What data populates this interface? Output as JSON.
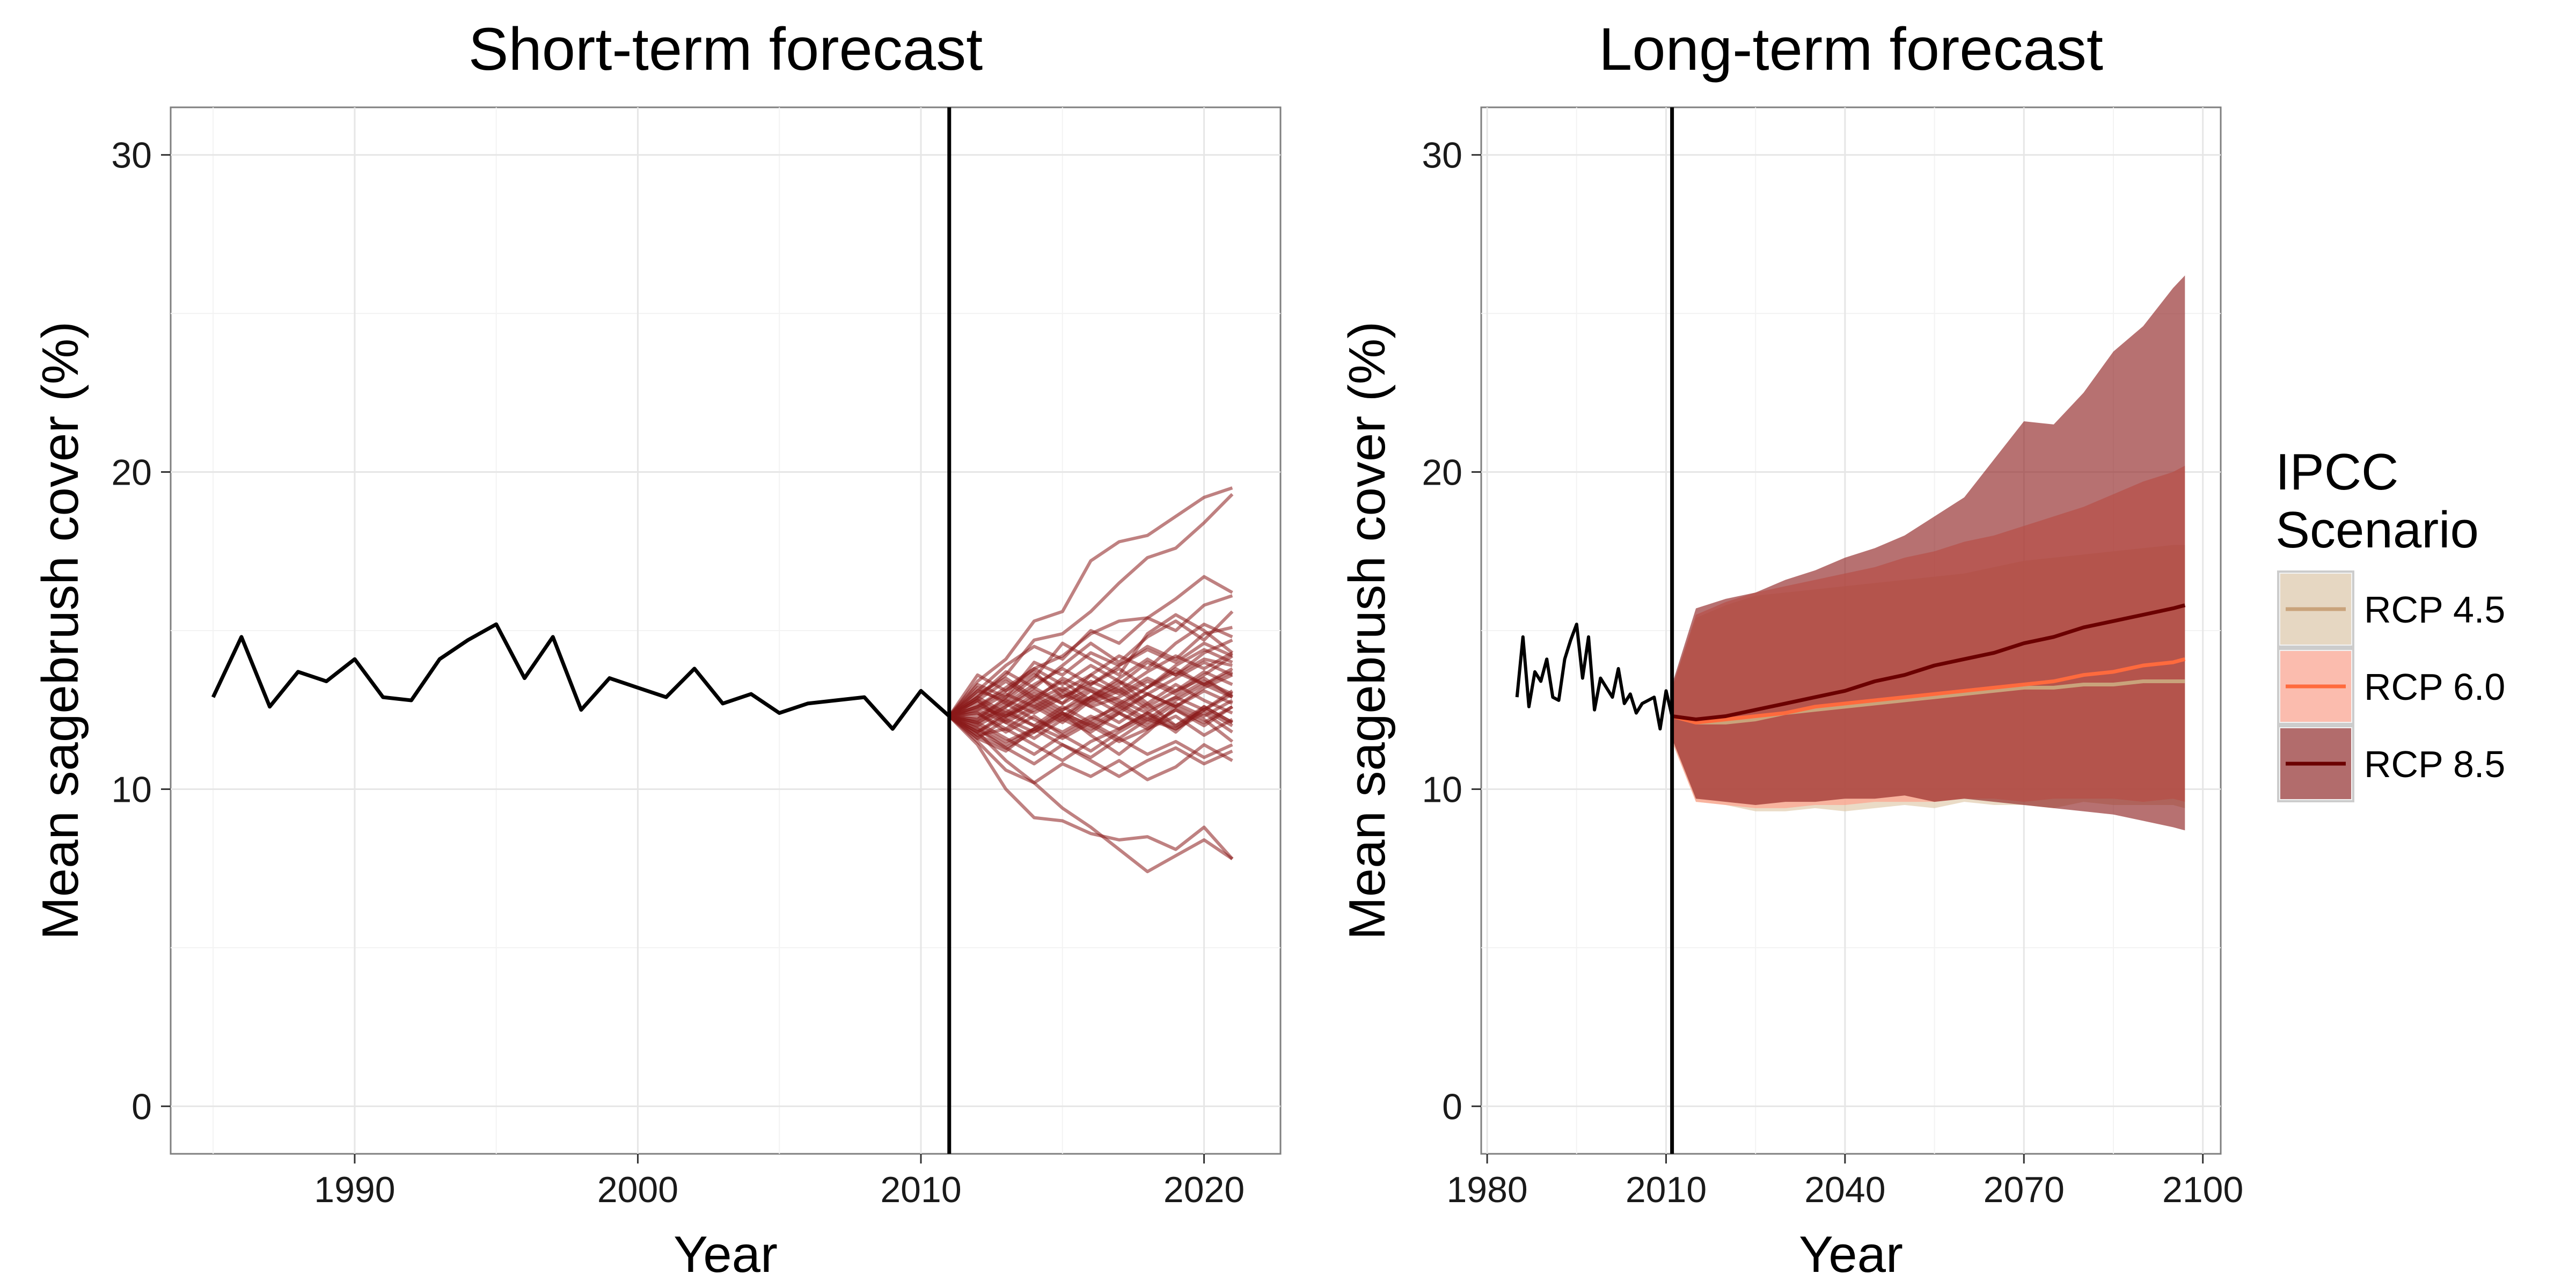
{
  "chart_data": [
    {
      "type": "line",
      "title": "Short-term forecast",
      "xlabel": "Year",
      "ylabel": "Mean sagebrush cover (%)",
      "xlim": [
        1983.5,
        2022.7
      ],
      "ylim": [
        -1.5,
        31.5
      ],
      "xticks": [
        1990,
        2000,
        2010,
        2020
      ],
      "yticks": [
        0,
        10,
        20,
        30
      ],
      "forecast_start": 2011,
      "grid": true,
      "observed": {
        "x": [
          1985,
          1986,
          1987,
          1988,
          1989,
          1990,
          1991,
          1992,
          1993,
          1994,
          1995,
          1996,
          1997,
          1998,
          1999,
          2000,
          2001,
          2002,
          2003,
          2004,
          2005,
          2006,
          2007,
          2008,
          2009,
          2010,
          2011
        ],
        "y": [
          12.9,
          14.8,
          12.6,
          13.7,
          13.4,
          14.1,
          12.9,
          12.8,
          14.1,
          14.7,
          15.2,
          13.5,
          14.8,
          12.5,
          13.5,
          13.2,
          12.9,
          13.8,
          12.7,
          13.0,
          12.4,
          12.7,
          12.8,
          12.9,
          11.9,
          13.1,
          12.3
        ]
      },
      "forecast_years": [
        2011,
        2012,
        2013,
        2014,
        2015,
        2016,
        2017,
        2018,
        2019,
        2020,
        2021
      ],
      "forecast_color": "#8b1a1a",
      "forecast_runs": [
        [
          12.3,
          13.4,
          14.1,
          15.3,
          15.6,
          17.2,
          17.8,
          18.0,
          18.6,
          19.2,
          19.5
        ],
        [
          12.3,
          12.9,
          13.6,
          14.7,
          14.9,
          15.6,
          16.5,
          17.3,
          17.6,
          18.4,
          19.3
        ],
        [
          12.3,
          11.4,
          10.0,
          9.1,
          9.0,
          8.6,
          8.4,
          8.5,
          8.1,
          8.8,
          7.8
        ],
        [
          12.3,
          11.8,
          10.9,
          10.2,
          9.4,
          8.8,
          8.1,
          7.4,
          7.9,
          8.4,
          7.8
        ],
        [
          12.3,
          12.6,
          13.1,
          13.8,
          14.2,
          14.9,
          15.3,
          15.4,
          16.0,
          16.7,
          16.2
        ],
        [
          12.3,
          13.1,
          12.8,
          13.5,
          14.6,
          14.1,
          13.6,
          14.9,
          15.5,
          15.0,
          14.3
        ],
        [
          12.3,
          11.6,
          11.2,
          11.9,
          12.4,
          11.7,
          11.1,
          11.8,
          12.6,
          12.2,
          11.5
        ],
        [
          12.3,
          12.8,
          12.1,
          11.6,
          12.2,
          12.9,
          13.4,
          12.7,
          12.0,
          12.5,
          13.1
        ],
        [
          12.3,
          12.1,
          12.6,
          13.2,
          12.7,
          13.6,
          14.2,
          13.8,
          14.6,
          15.2,
          14.8
        ],
        [
          12.3,
          11.9,
          11.3,
          10.8,
          11.4,
          10.9,
          10.4,
          10.9,
          11.3,
          10.8,
          11.2
        ],
        [
          12.3,
          13.0,
          13.5,
          12.9,
          13.4,
          12.8,
          13.3,
          14.0,
          13.6,
          14.1,
          13.9
        ],
        [
          12.3,
          12.4,
          11.8,
          12.3,
          11.7,
          12.2,
          12.6,
          12.1,
          12.7,
          12.3,
          12.8
        ],
        [
          12.3,
          11.7,
          11.9,
          11.4,
          10.9,
          11.5,
          11.9,
          12.4,
          11.8,
          12.6,
          12.1
        ],
        [
          12.3,
          12.9,
          13.7,
          13.2,
          13.9,
          14.6,
          14.0,
          14.8,
          15.3,
          14.7,
          15.6
        ],
        [
          12.3,
          12.2,
          12.9,
          13.6,
          13.1,
          12.6,
          12.9,
          13.4,
          13.0,
          13.6,
          14.2
        ],
        [
          12.3,
          11.5,
          10.6,
          10.2,
          10.8,
          10.4,
          10.9,
          10.3,
          10.7,
          11.4,
          10.9
        ],
        [
          12.3,
          12.6,
          12.3,
          12.8,
          13.5,
          13.1,
          12.7,
          13.2,
          13.8,
          13.3,
          13.7
        ],
        [
          12.3,
          12.0,
          12.5,
          12.0,
          11.6,
          12.1,
          11.6,
          12.2,
          11.9,
          12.4,
          11.8
        ],
        [
          12.3,
          13.3,
          12.9,
          14.0,
          13.6,
          14.3,
          13.9,
          14.5,
          14.1,
          14.9,
          15.1
        ],
        [
          12.3,
          11.8,
          12.3,
          12.7,
          12.2,
          11.8,
          12.4,
          11.9,
          12.5,
          12.0,
          12.6
        ],
        [
          12.3,
          12.5,
          13.0,
          12.6,
          12.1,
          12.8,
          13.2,
          12.6,
          13.1,
          13.5,
          12.9
        ],
        [
          12.3,
          11.9,
          11.4,
          11.9,
          12.5,
          12.9,
          12.4,
          13.0,
          12.6,
          13.2,
          13.6
        ],
        [
          12.3,
          12.7,
          12.2,
          11.8,
          12.4,
          12.0,
          11.5,
          11.9,
          12.3,
          11.7,
          12.2
        ],
        [
          12.3,
          13.6,
          13.1,
          13.7,
          12.9,
          13.3,
          13.8,
          13.2,
          13.9,
          14.4,
          14.0
        ],
        [
          12.3,
          12.1,
          11.6,
          11.1,
          11.7,
          11.2,
          11.8,
          12.3,
          11.9,
          12.5,
          12.0
        ],
        [
          12.3,
          12.8,
          13.4,
          12.8,
          13.2,
          12.7,
          13.1,
          12.5,
          12.9,
          13.4,
          13.0
        ],
        [
          12.3,
          11.6,
          12.2,
          12.8,
          12.3,
          12.9,
          13.5,
          14.1,
          13.6,
          14.3,
          14.7
        ],
        [
          12.3,
          12.4,
          11.9,
          12.5,
          13.0,
          12.6,
          12.1,
          12.7,
          13.3,
          12.8,
          12.4
        ],
        [
          12.3,
          13.1,
          13.9,
          14.5,
          14.1,
          15.0,
          14.6,
          15.4,
          15.0,
          15.8,
          16.1
        ],
        [
          12.3,
          12.0,
          11.5,
          11.9,
          11.4,
          11.0,
          11.6,
          11.1,
          11.5,
          11.0,
          11.4
        ],
        [
          12.3,
          12.6,
          13.2,
          13.8,
          13.3,
          13.9,
          13.4,
          13.0,
          13.5,
          14.0,
          13.6
        ],
        [
          12.3,
          11.8,
          12.4,
          12.0,
          12.6,
          12.1,
          12.7,
          12.2,
          12.8,
          13.3,
          12.9
        ],
        [
          12.3,
          12.9,
          12.4,
          13.0,
          12.5,
          13.1,
          12.6,
          13.2,
          13.7,
          13.3,
          13.8
        ],
        [
          12.3,
          12.2,
          12.7,
          12.2,
          11.8,
          12.3,
          11.9,
          12.4,
          12.0,
          12.6,
          12.1
        ],
        [
          12.3,
          12.5,
          12.1,
          12.6,
          13.1,
          13.6,
          13.1,
          13.7,
          14.2,
          13.8,
          14.3
        ],
        [
          12.3,
          12.1,
          12.6,
          13.1,
          12.7,
          13.2,
          12.8,
          12.4,
          12.9,
          12.5,
          13.0
        ],
        [
          12.3,
          13.2,
          12.7,
          13.3,
          13.8,
          13.3,
          13.9,
          14.4,
          14.0,
          14.6,
          14.2
        ],
        [
          12.3,
          11.7,
          11.3,
          11.8,
          12.3,
          11.9,
          12.4,
          12.0,
          12.5,
          12.1,
          12.6
        ],
        [
          12.3,
          12.8,
          12.3,
          12.9,
          12.4,
          12.0,
          12.5,
          13.0,
          12.6,
          13.1,
          12.7
        ],
        [
          12.3,
          12.3,
          12.8,
          12.4,
          12.9,
          13.4,
          13.0,
          13.5,
          13.1,
          13.7,
          13.3
        ]
      ]
    },
    {
      "type": "area",
      "title": "Long-term forecast",
      "xlabel": "Year",
      "ylabel": "Mean sagebrush cover (%)",
      "xlim": [
        1979,
        2103
      ],
      "ylim": [
        -1.5,
        31.5
      ],
      "xticks": [
        1980,
        2010,
        2040,
        2070,
        2100
      ],
      "yticks": [
        0,
        10,
        20,
        30
      ],
      "forecast_start": 2011,
      "grid": true,
      "observed": {
        "x": [
          1985,
          1986,
          1987,
          1988,
          1989,
          1990,
          1991,
          1992,
          1993,
          1994,
          1995,
          1996,
          1997,
          1998,
          1999,
          2000,
          2001,
          2002,
          2003,
          2004,
          2005,
          2006,
          2007,
          2008,
          2009,
          2010,
          2011
        ],
        "y": [
          12.9,
          14.8,
          12.6,
          13.7,
          13.4,
          14.1,
          12.9,
          12.8,
          14.1,
          14.7,
          15.2,
          13.5,
          14.8,
          12.5,
          13.5,
          13.2,
          12.9,
          13.8,
          12.7,
          13.0,
          12.4,
          12.7,
          12.8,
          12.9,
          11.9,
          13.1,
          12.3
        ]
      },
      "legend": {
        "title": "IPCC Scenario",
        "position": "right"
      },
      "series": [
        {
          "name": "RCP 4.5",
          "color": "#c9a37b",
          "fill": "#dfc8a8",
          "fill_opacity": 0.65,
          "x": [
            2011,
            2015,
            2020,
            2025,
            2030,
            2035,
            2040,
            2045,
            2050,
            2055,
            2060,
            2065,
            2070,
            2075,
            2080,
            2085,
            2090,
            2095,
            2097
          ],
          "mean": [
            12.3,
            12.1,
            12.1,
            12.2,
            12.4,
            12.5,
            12.6,
            12.7,
            12.8,
            12.9,
            13.0,
            13.1,
            13.2,
            13.2,
            13.3,
            13.3,
            13.4,
            13.4,
            13.4
          ],
          "lower": [
            11.5,
            9.6,
            9.5,
            9.3,
            9.3,
            9.4,
            9.3,
            9.4,
            9.5,
            9.4,
            9.6,
            9.5,
            9.5,
            9.4,
            9.6,
            9.5,
            9.5,
            9.5,
            9.4
          ],
          "upper": [
            13.2,
            15.4,
            15.8,
            16.1,
            16.2,
            16.3,
            16.4,
            16.5,
            16.6,
            16.7,
            16.8,
            17.0,
            17.2,
            17.3,
            17.4,
            17.5,
            17.6,
            17.7,
            17.7
          ]
        },
        {
          "name": "RCP 6.0",
          "color": "#ff6a3d",
          "fill": "#ff9e88",
          "fill_opacity": 0.65,
          "x": [
            2011,
            2015,
            2020,
            2025,
            2030,
            2035,
            2040,
            2045,
            2050,
            2055,
            2060,
            2065,
            2070,
            2075,
            2080,
            2085,
            2090,
            2095,
            2097
          ],
          "mean": [
            12.3,
            12.1,
            12.2,
            12.3,
            12.4,
            12.6,
            12.7,
            12.8,
            12.9,
            13.0,
            13.1,
            13.2,
            13.3,
            13.4,
            13.6,
            13.7,
            13.9,
            14.0,
            14.1
          ],
          "lower": [
            11.5,
            9.6,
            9.5,
            9.4,
            9.4,
            9.5,
            9.5,
            9.6,
            9.6,
            9.6,
            9.7,
            9.7,
            9.6,
            9.7,
            9.7,
            9.7,
            9.6,
            9.7,
            9.6
          ],
          "upper": [
            13.2,
            15.5,
            15.9,
            16.2,
            16.4,
            16.6,
            16.8,
            17.0,
            17.3,
            17.5,
            17.8,
            18.0,
            18.3,
            18.6,
            18.9,
            19.3,
            19.7,
            20.0,
            20.2
          ]
        },
        {
          "name": "RCP 8.5",
          "color": "#6b0000",
          "fill": "#8b1a1a",
          "fill_opacity": 0.62,
          "x": [
            2011,
            2015,
            2020,
            2025,
            2030,
            2035,
            2040,
            2045,
            2050,
            2055,
            2060,
            2065,
            2070,
            2075,
            2080,
            2085,
            2090,
            2095,
            2097
          ],
          "mean": [
            12.3,
            12.2,
            12.3,
            12.5,
            12.7,
            12.9,
            13.1,
            13.4,
            13.6,
            13.9,
            14.1,
            14.3,
            14.6,
            14.8,
            15.1,
            15.3,
            15.5,
            15.7,
            15.8
          ],
          "lower": [
            11.6,
            9.7,
            9.6,
            9.5,
            9.6,
            9.6,
            9.7,
            9.7,
            9.8,
            9.6,
            9.7,
            9.6,
            9.5,
            9.4,
            9.3,
            9.2,
            9.0,
            8.8,
            8.7
          ],
          "upper": [
            13.3,
            15.7,
            16.0,
            16.2,
            16.6,
            16.9,
            17.3,
            17.6,
            18.0,
            18.6,
            19.2,
            20.4,
            21.6,
            21.5,
            22.5,
            23.8,
            24.6,
            25.8,
            26.2
          ]
        }
      ]
    }
  ]
}
